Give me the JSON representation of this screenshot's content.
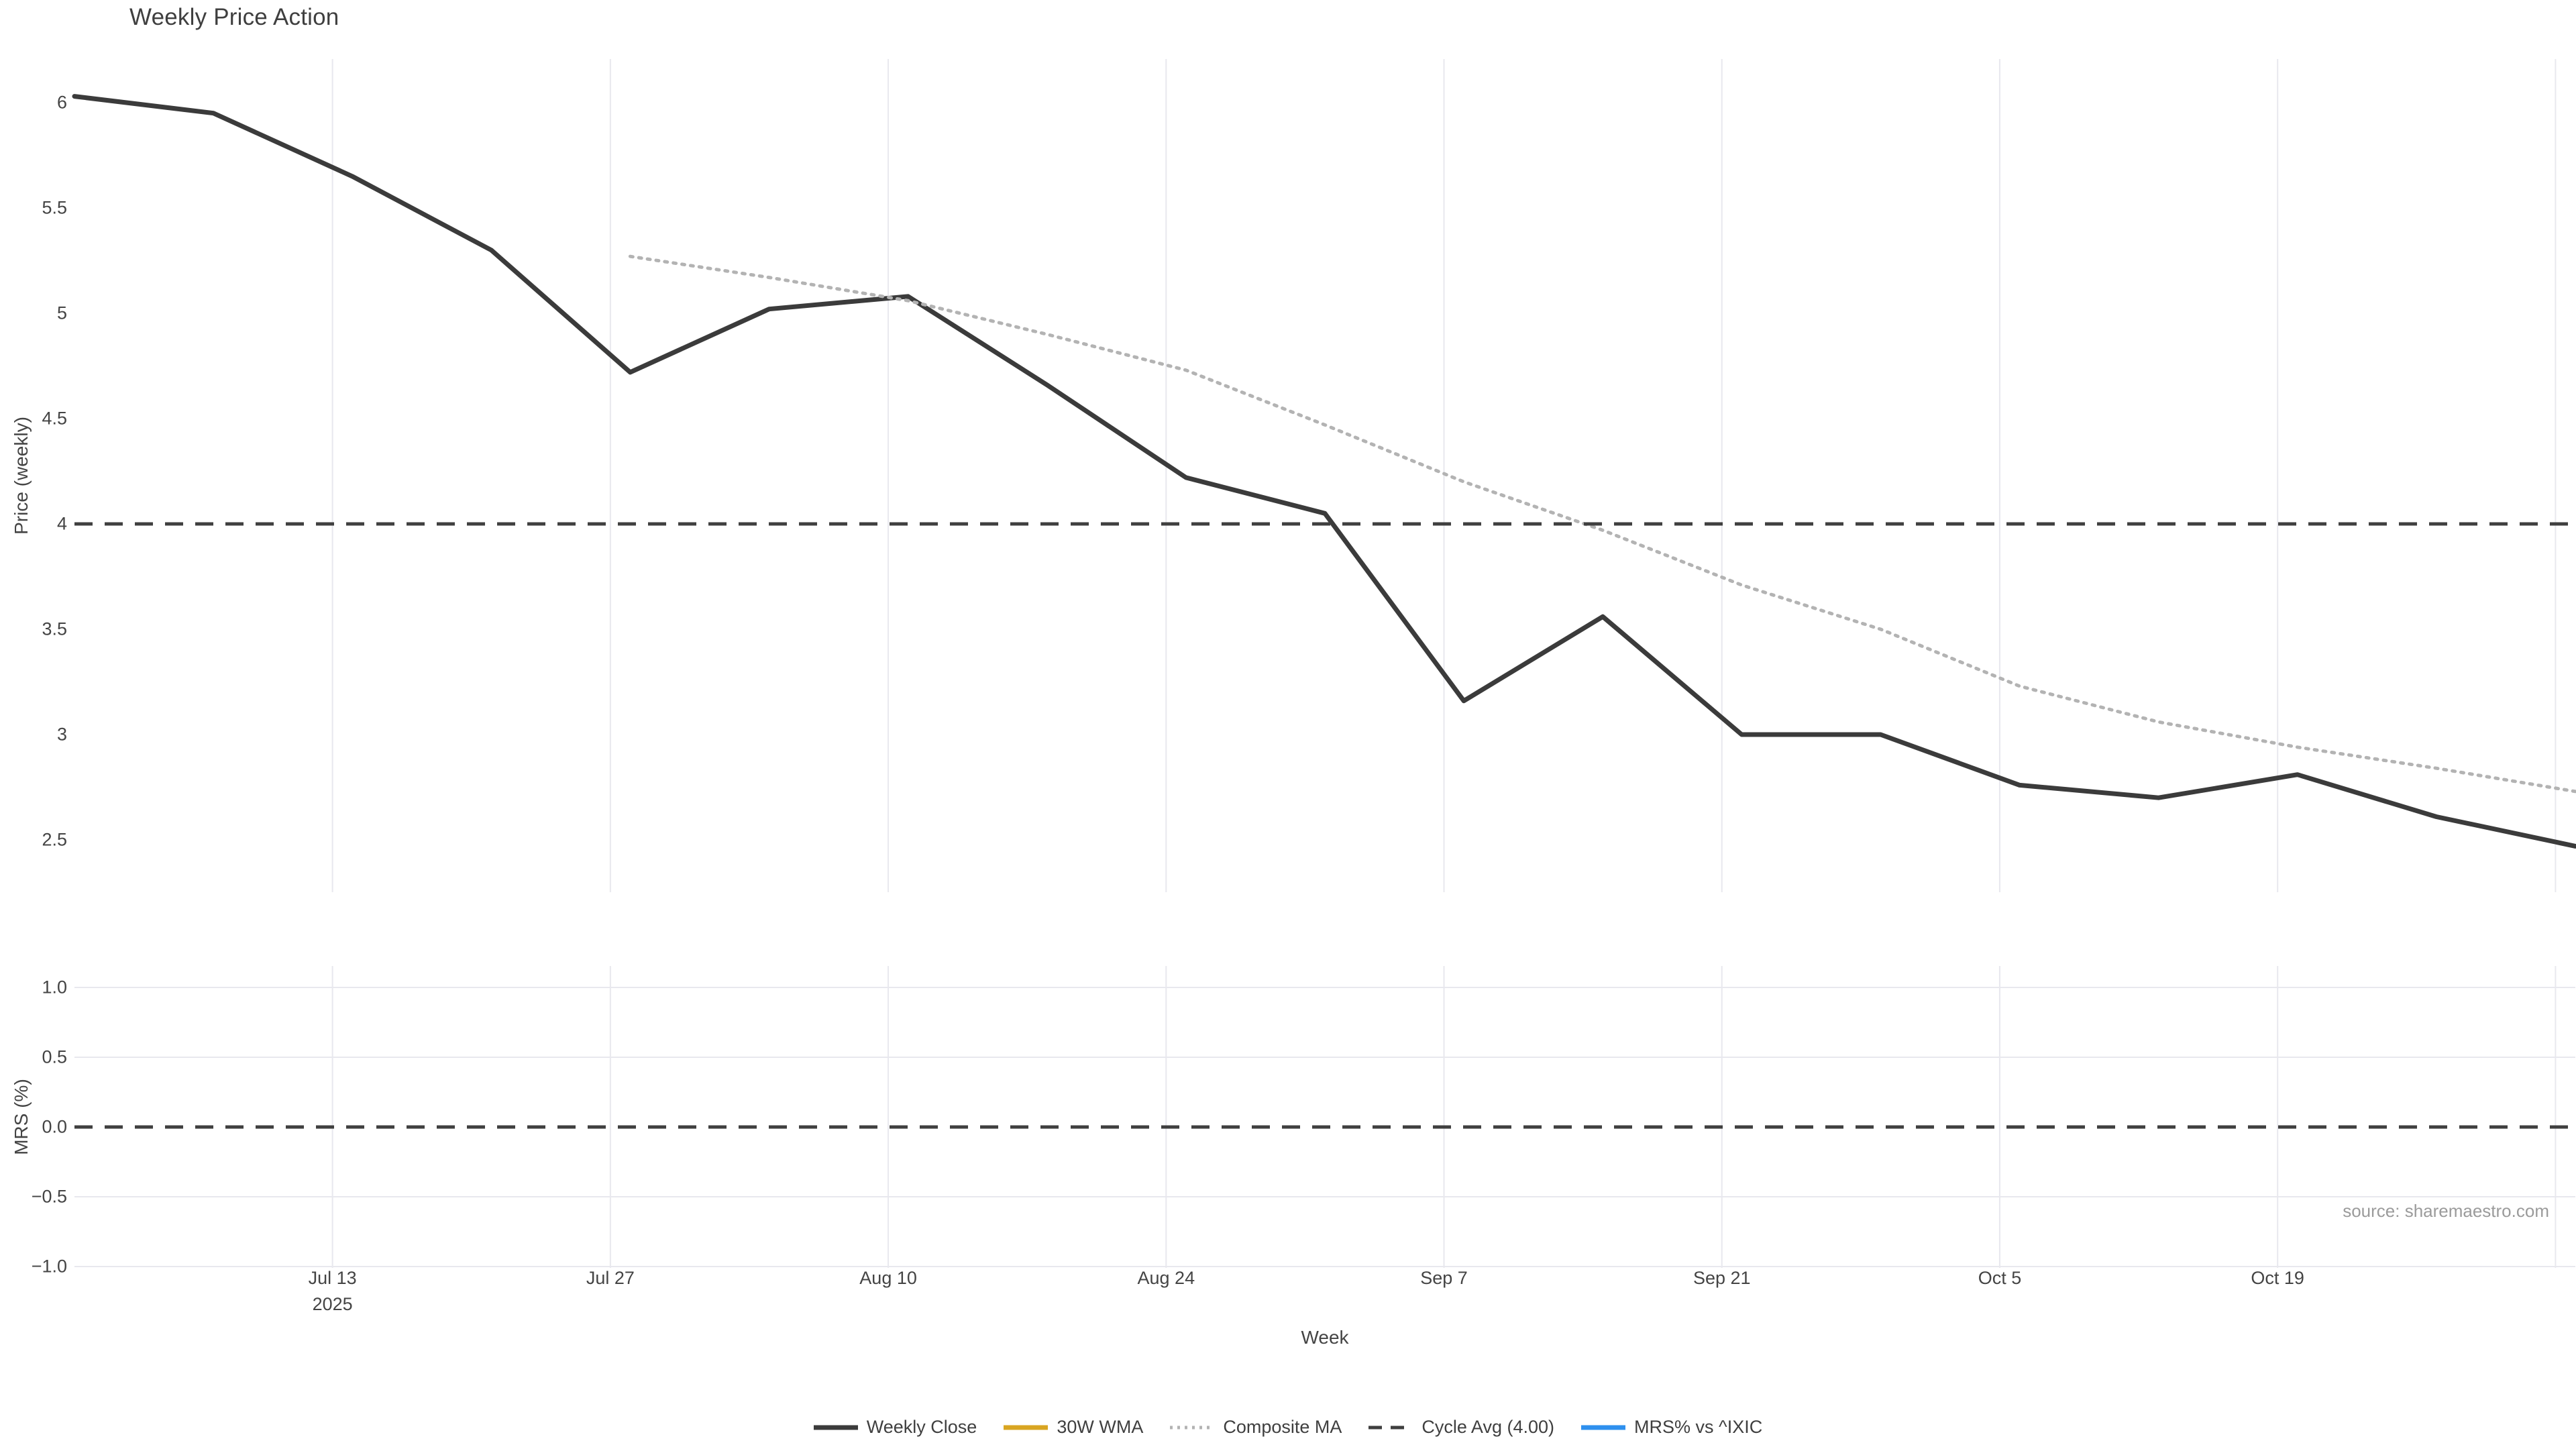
{
  "title": "Weekly Price Action",
  "source": "source: sharemaestro.com",
  "colors": {
    "background": "#ffffff",
    "weekly_close": "#3b3b3b",
    "wma_30w": "#d9a521",
    "composite_ma": "#b3b3b3",
    "cycle_avg": "#3f3f3f",
    "mrs_line": "#2e90ee",
    "gridline": "#e8e8ee",
    "tick_text": "#444444",
    "title_text": "#3f3f3f",
    "source_text": "#9b9b9b"
  },
  "legend": {
    "items": [
      {
        "label": "Weekly Close",
        "color": "#3b3b3b",
        "style": "solid"
      },
      {
        "label": "30W WMA",
        "color": "#d9a521",
        "style": "solid"
      },
      {
        "label": "Composite MA",
        "color": "#b3b3b3",
        "style": "dotted"
      },
      {
        "label": "Cycle Avg (4.00)",
        "color": "#3f3f3f",
        "style": "dashed"
      },
      {
        "label": "MRS% vs ^IXIC",
        "color": "#2e90ee",
        "style": "solid"
      }
    ]
  },
  "axes": {
    "week": {
      "title": "Week",
      "ticks": [
        {
          "label": "Jul 13",
          "sublabel": "2025",
          "day": 13
        },
        {
          "label": "Jul 27",
          "sublabel": "",
          "day": 27
        },
        {
          "label": "Aug 10",
          "sublabel": "",
          "day": 41
        },
        {
          "label": "Aug 24",
          "sublabel": "",
          "day": 55
        },
        {
          "label": "Sep 7",
          "sublabel": "",
          "day": 69
        },
        {
          "label": "Sep 21",
          "sublabel": "",
          "day": 83
        },
        {
          "label": "Oct 5",
          "sublabel": "",
          "day": 97
        },
        {
          "label": "Oct 19",
          "sublabel": "",
          "day": 111
        },
        {
          "label": "",
          "sublabel": "",
          "day": 125
        }
      ]
    },
    "price": {
      "title": "Price (weekly)",
      "ticks": [
        {
          "label": "6",
          "value": 6.0
        },
        {
          "label": "5.5",
          "value": 5.5
        },
        {
          "label": "5",
          "value": 5.0
        },
        {
          "label": "4.5",
          "value": 4.5
        },
        {
          "label": "4",
          "value": 4.0
        },
        {
          "label": "3.5",
          "value": 3.5
        },
        {
          "label": "3",
          "value": 3.0
        },
        {
          "label": "2.5",
          "value": 2.5
        }
      ]
    },
    "mrs": {
      "title": "MRS (%)",
      "ticks": [
        {
          "label": "1.0",
          "value": 1.0
        },
        {
          "label": "0.5",
          "value": 0.5
        },
        {
          "label": "0.0",
          "value": 0.0
        },
        {
          "label": "−0.5",
          "value": -0.5
        },
        {
          "label": "−1.0",
          "value": -1.0
        }
      ]
    }
  },
  "chart_data": [
    {
      "type": "line",
      "panel": "price",
      "title": "Weekly Price Action",
      "xlabel": "Week",
      "ylabel": "Price (weekly)",
      "ylim": [
        2.25,
        6.21
      ],
      "xlim_days": [
        0,
        126
      ],
      "grid": "vertical-only",
      "legend_position": "bottom",
      "categories": [
        "Jun 30",
        "Jul 7",
        "Jul 14",
        "Jul 21",
        "Jul 28",
        "Aug 4",
        "Aug 11",
        "Aug 18",
        "Aug 25",
        "Sep 1",
        "Sep 8",
        "Sep 15",
        "Sep 22",
        "Sep 29",
        "Oct 6",
        "Oct 13",
        "Oct 20",
        "Oct 27",
        "Nov 3"
      ],
      "series": [
        {
          "name": "Weekly Close",
          "color": "#3b3b3b",
          "style": "solid",
          "width": 7,
          "values": [
            6.03,
            5.95,
            5.65,
            5.3,
            4.72,
            5.02,
            5.08,
            4.66,
            4.22,
            4.05,
            3.16,
            3.56,
            3.0,
            3.0,
            2.76,
            2.7,
            2.81,
            2.61,
            2.47
          ]
        },
        {
          "name": "30W WMA",
          "color": "#d9a521",
          "style": "solid",
          "width": 7,
          "values": [
            null,
            null,
            null,
            null,
            null,
            null,
            null,
            null,
            null,
            null,
            null,
            null,
            null,
            null,
            null,
            null,
            null,
            null,
            null
          ]
        },
        {
          "name": "Composite MA",
          "color": "#b3b3b3",
          "style": "dotted",
          "width": 5,
          "values": [
            null,
            null,
            null,
            null,
            5.27,
            5.17,
            5.06,
            4.9,
            4.73,
            4.47,
            4.2,
            3.97,
            3.71,
            3.5,
            3.23,
            3.06,
            2.94,
            2.84,
            2.73
          ]
        },
        {
          "name": "Cycle Avg (4.00)",
          "color": "#3f3f3f",
          "style": "dashed",
          "width": 5,
          "hline": 4.0
        }
      ]
    },
    {
      "type": "line",
      "panel": "mrs",
      "ylabel": "MRS (%)",
      "ylim": [
        -1.05,
        1.15
      ],
      "grid": "both",
      "categories": [
        "Jun 30",
        "Jul 7",
        "Jul 14",
        "Jul 21",
        "Jul 28",
        "Aug 4",
        "Aug 11",
        "Aug 18",
        "Aug 25",
        "Sep 1",
        "Sep 8",
        "Sep 15",
        "Sep 22",
        "Sep 29",
        "Oct 6",
        "Oct 13",
        "Oct 20",
        "Oct 27",
        "Nov 3"
      ],
      "series": [
        {
          "name": "MRS% vs ^IXIC",
          "color": "#2e90ee",
          "style": "solid",
          "width": 6,
          "values": [
            null,
            null,
            null,
            null,
            null,
            null,
            null,
            null,
            null,
            null,
            null,
            null,
            null,
            null,
            null,
            null,
            null,
            null,
            null
          ]
        },
        {
          "name": "Zero line",
          "color": "#3f3f3f",
          "style": "dashed",
          "width": 5,
          "hline": 0.0
        }
      ]
    }
  ]
}
